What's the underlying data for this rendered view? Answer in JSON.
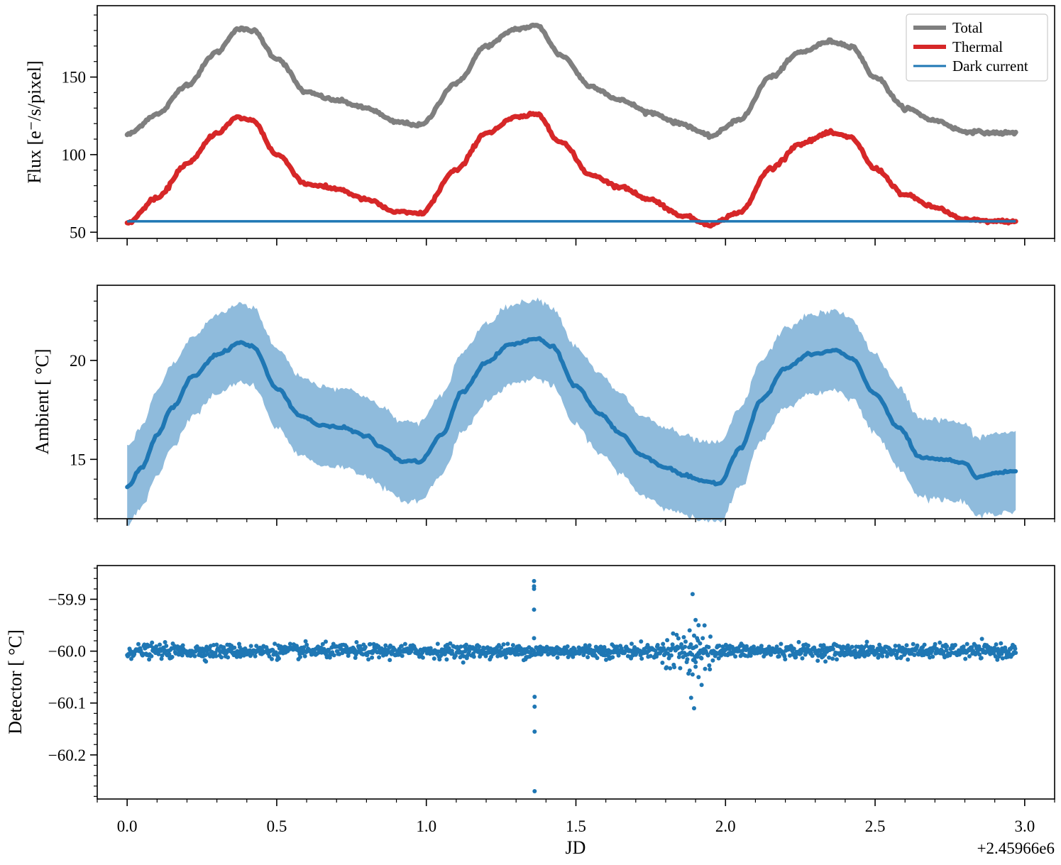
{
  "chart_data": [
    {
      "type": "line",
      "panel": "flux",
      "ylabel": "Flux [e⁻/s/pixel]",
      "ylim": [
        46,
        196
      ],
      "yticks": [
        50,
        100,
        150
      ],
      "ytick_labels": [
        "50",
        "100",
        "150"
      ],
      "xlim": [
        -0.1,
        3.1
      ],
      "colors": {
        "total": "#7f7f7f",
        "thermal": "#d62728",
        "dark": "#1f77b4"
      },
      "legend": {
        "placement": "top-right",
        "entries": [
          "Total",
          "Thermal",
          "Dark current"
        ]
      },
      "series": [
        {
          "name": "Total",
          "key": "total",
          "x": [
            0.0,
            0.1,
            0.2,
            0.3,
            0.37,
            0.42,
            0.5,
            0.6,
            0.7,
            0.8,
            0.9,
            0.98,
            1.1,
            1.2,
            1.3,
            1.37,
            1.45,
            1.55,
            1.65,
            1.75,
            1.85,
            1.95,
            2.05,
            2.15,
            2.25,
            2.35,
            2.42,
            2.5,
            2.6,
            2.7,
            2.8,
            2.9,
            2.97
          ],
          "values": [
            113,
            126,
            145,
            166,
            181,
            180,
            162,
            140,
            135,
            130,
            121,
            119,
            146,
            170,
            181,
            183,
            164,
            144,
            135,
            127,
            120,
            112,
            123,
            150,
            166,
            173,
            170,
            150,
            130,
            122,
            115,
            114,
            114
          ]
        },
        {
          "name": "Thermal",
          "key": "thermal",
          "x": [
            0.0,
            0.1,
            0.2,
            0.3,
            0.37,
            0.42,
            0.5,
            0.6,
            0.7,
            0.8,
            0.9,
            0.98,
            1.1,
            1.2,
            1.3,
            1.37,
            1.45,
            1.55,
            1.65,
            1.75,
            1.85,
            1.95,
            2.05,
            2.15,
            2.25,
            2.35,
            2.42,
            2.5,
            2.6,
            2.7,
            2.8,
            2.9,
            2.97
          ],
          "values": [
            56,
            72,
            94,
            114,
            124,
            122,
            100,
            81,
            78,
            71,
            63,
            62,
            90,
            114,
            124,
            126,
            108,
            87,
            79,
            71,
            61,
            55,
            63,
            91,
            107,
            114,
            111,
            91,
            74,
            66,
            58,
            57,
            57
          ]
        },
        {
          "name": "Dark current",
          "key": "dark",
          "x": [
            0.0,
            2.97
          ],
          "values": [
            57,
            57
          ]
        }
      ]
    },
    {
      "type": "area",
      "panel": "ambient",
      "ylabel": "Ambient [ °C]",
      "ylim": [
        12.0,
        23.8
      ],
      "yticks": [
        15,
        20
      ],
      "ytick_labels": [
        "15",
        "20"
      ],
      "xlim": [
        -0.1,
        3.1
      ],
      "colors": {
        "line": "#1f77b4",
        "band": "#8fbbdc"
      },
      "series": [
        {
          "name": "Ambient",
          "x": [
            0.0,
            0.05,
            0.1,
            0.15,
            0.22,
            0.3,
            0.38,
            0.42,
            0.5,
            0.58,
            0.65,
            0.72,
            0.8,
            0.85,
            0.92,
            0.98,
            1.05,
            1.12,
            1.2,
            1.28,
            1.37,
            1.42,
            1.5,
            1.58,
            1.65,
            1.72,
            1.8,
            1.86,
            1.92,
            1.98,
            2.05,
            2.12,
            2.2,
            2.28,
            2.37,
            2.42,
            2.5,
            2.58,
            2.65,
            2.72,
            2.8,
            2.84,
            2.9,
            2.97
          ],
          "values": [
            13.6,
            14.6,
            16.2,
            17.6,
            19.2,
            20.3,
            20.9,
            20.7,
            18.6,
            17.2,
            16.7,
            16.6,
            16.2,
            15.6,
            14.9,
            14.9,
            16.2,
            18.4,
            19.9,
            20.8,
            21.1,
            20.7,
            18.7,
            17.3,
            16.3,
            15.2,
            14.6,
            14.2,
            13.9,
            13.8,
            15.6,
            18.0,
            19.6,
            20.3,
            20.5,
            20.1,
            18.3,
            16.6,
            15.1,
            15.0,
            14.8,
            14.1,
            14.3,
            14.4
          ]
        },
        {
          "name": "Ambient upper",
          "values": [
            15.6,
            16.7,
            18.5,
            19.8,
            21.2,
            22.3,
            22.9,
            22.7,
            20.6,
            19.2,
            18.7,
            18.6,
            18.2,
            17.6,
            16.9,
            16.9,
            18.2,
            20.4,
            21.9,
            22.8,
            23.1,
            22.7,
            20.7,
            19.3,
            18.3,
            17.2,
            16.6,
            16.2,
            15.9,
            15.8,
            17.6,
            20.0,
            21.6,
            22.3,
            22.5,
            22.1,
            20.3,
            18.6,
            17.1,
            17.0,
            16.8,
            16.1,
            16.3,
            16.4
          ]
        },
        {
          "name": "Ambient lower",
          "values": [
            11.6,
            12.6,
            14.2,
            15.6,
            17.2,
            18.3,
            18.9,
            18.7,
            16.6,
            15.2,
            14.7,
            14.6,
            14.2,
            13.6,
            12.9,
            12.9,
            14.2,
            16.4,
            17.9,
            18.8,
            19.1,
            18.7,
            16.7,
            15.3,
            14.3,
            13.2,
            12.6,
            12.2,
            11.9,
            11.8,
            13.6,
            16.0,
            17.6,
            18.3,
            18.5,
            18.1,
            16.3,
            14.6,
            13.1,
            13.0,
            12.8,
            12.1,
            12.3,
            12.4
          ]
        }
      ]
    },
    {
      "type": "scatter",
      "panel": "detector",
      "ylabel": "Detector [ °C]",
      "ylim": [
        -60.285,
        -59.835
      ],
      "yticks": [
        -59.9,
        -60.0,
        -60.1,
        -60.2
      ],
      "ytick_labels": [
        "−59.9",
        "−60.0",
        "−60.1",
        "−60.2"
      ],
      "xlim": [
        -0.1,
        3.1
      ],
      "xticks": [
        0.0,
        0.5,
        1.0,
        1.5,
        2.0,
        2.5,
        3.0
      ],
      "xtick_labels": [
        "0.0",
        "0.5",
        "1.0",
        "1.5",
        "2.0",
        "2.5",
        "3.0"
      ],
      "xlabel": "JD",
      "offset_text": "+2.45966e6",
      "color": "#1f77b4",
      "baseline": -60.0,
      "noise": 0.012,
      "n_points": 1500,
      "outliers": {
        "x": [
          1.36,
          1.36,
          1.36,
          1.36,
          1.36,
          1.362,
          1.362,
          1.362,
          1.362,
          1.89,
          1.9,
          1.91,
          1.88,
          1.895,
          1.905,
          1.915,
          1.9,
          1.89,
          1.91,
          1.92,
          1.885,
          1.895
        ],
        "values": [
          -59.865,
          -59.875,
          -59.88,
          -59.92,
          -59.975,
          -60.088,
          -60.107,
          -60.155,
          -60.27,
          -59.89,
          -59.94,
          -59.95,
          -59.96,
          -59.97,
          -59.975,
          -59.985,
          -60.03,
          -60.045,
          -60.05,
          -60.065,
          -60.09,
          -60.11
        ]
      }
    }
  ]
}
